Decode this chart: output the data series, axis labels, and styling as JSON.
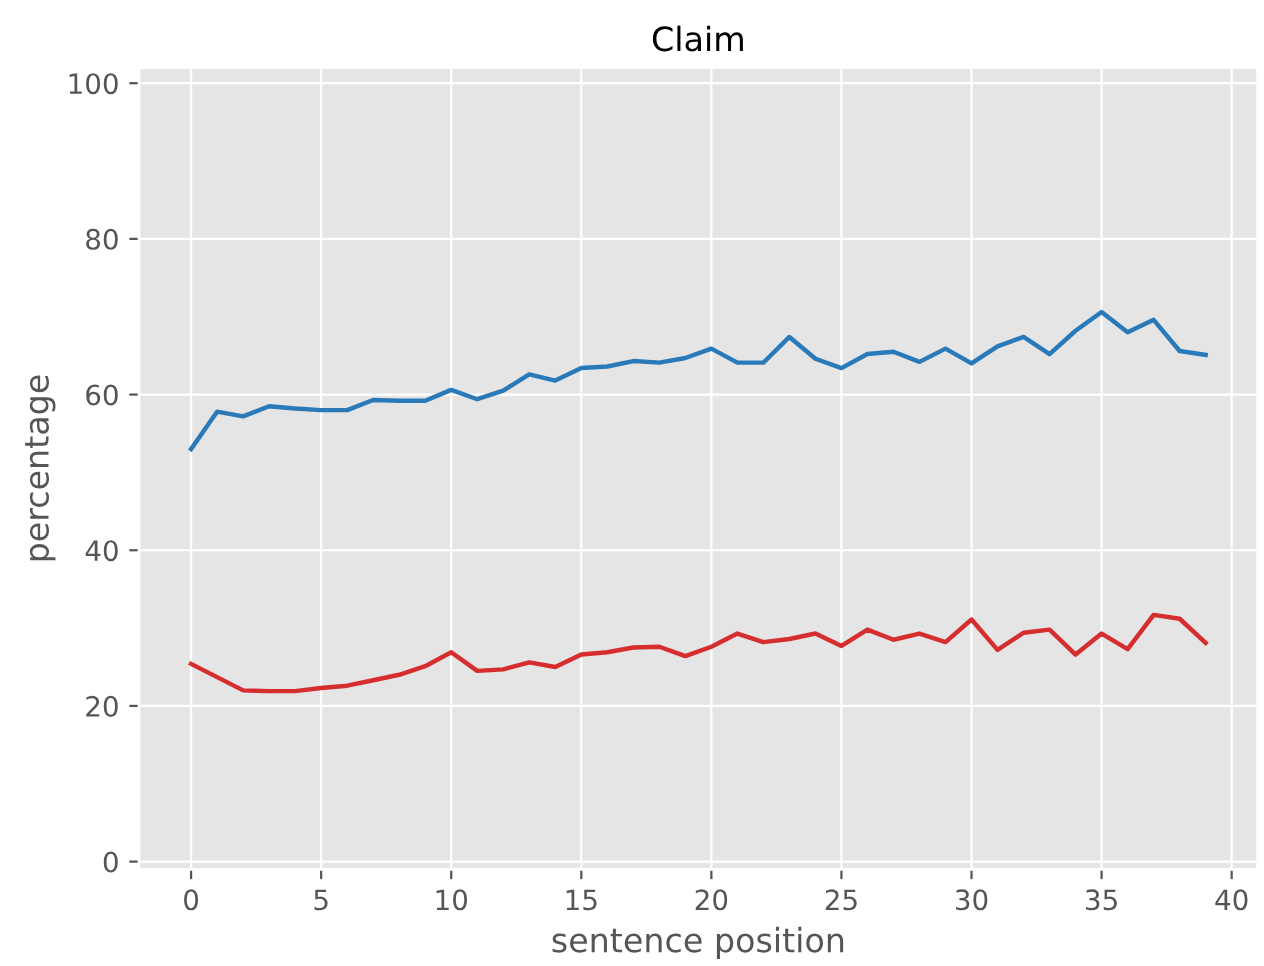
{
  "chart_data": {
    "type": "line",
    "title": "Claim",
    "xlabel": "sentence position",
    "ylabel": "percentage",
    "x": [
      0,
      1,
      2,
      3,
      4,
      5,
      6,
      7,
      8,
      9,
      10,
      11,
      12,
      13,
      14,
      15,
      16,
      17,
      18,
      19,
      20,
      21,
      22,
      23,
      24,
      25,
      26,
      27,
      28,
      29,
      30,
      31,
      32,
      33,
      34,
      35,
      36,
      37,
      38,
      39
    ],
    "series": [
      {
        "color": "#2a7ab9",
        "values": [
          53,
          57.8,
          57.2,
          58.5,
          58.2,
          58,
          58,
          59.3,
          59.2,
          59.2,
          60.6,
          59.4,
          60.5,
          62.6,
          61.8,
          63.4,
          63.6,
          64.3,
          64.1,
          64.7,
          65.9,
          64.1,
          64.1,
          67.4,
          64.6,
          63.4,
          65.2,
          65.5,
          64.2,
          65.9,
          64,
          66.2,
          67.4,
          65.2,
          68.2,
          70.6,
          68,
          69.6,
          65.6,
          65.1
        ]
      },
      {
        "color": "#d62d2f",
        "values": [
          25.4,
          23.7,
          22,
          21.9,
          21.9,
          22.3,
          22.6,
          23.3,
          24,
          25.1,
          26.9,
          24.5,
          24.7,
          25.6,
          25,
          26.6,
          26.9,
          27.5,
          27.6,
          26.4,
          27.6,
          29.3,
          28.2,
          28.6,
          29.3,
          27.7,
          29.8,
          28.5,
          29.3,
          28.2,
          31.1,
          27.2,
          29.4,
          29.8,
          26.6,
          29.3,
          27.3,
          31.7,
          31.2,
          28.1
        ]
      }
    ],
    "xlim": [
      -2,
      41
    ],
    "xticks": [
      0,
      5,
      10,
      15,
      20,
      25,
      30,
      35,
      40
    ],
    "ylim": [
      -1,
      102
    ],
    "yticks": [
      0,
      20,
      40,
      60,
      80,
      100
    ],
    "grid": true,
    "marker": "none",
    "line_style": "solid"
  }
}
